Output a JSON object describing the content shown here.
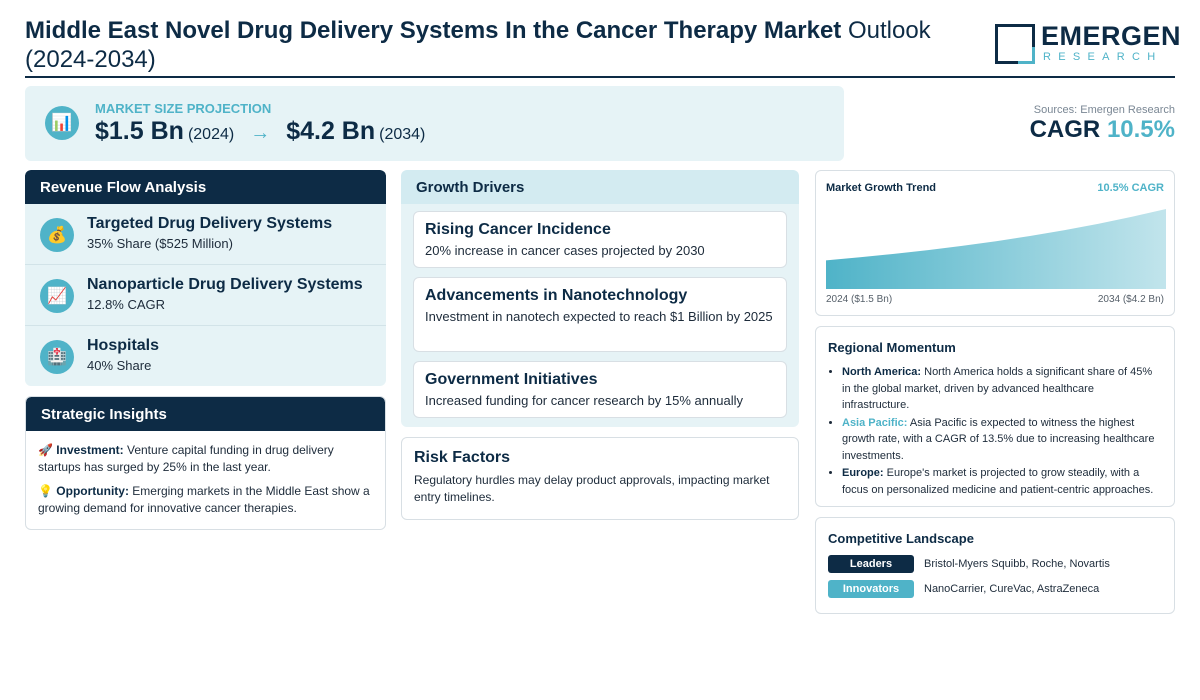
{
  "header": {
    "title_bold": "Middle East Novel Drug Delivery Systems In the Cancer Therapy Market",
    "title_rest": " Outlook (2024-2034)",
    "logo_word": "EMERGEN",
    "logo_sub": "RESEARCH"
  },
  "projection": {
    "label": "MARKET SIZE PROJECTION",
    "start_value": "$1.5 Bn",
    "start_year": "(2024)",
    "arrow": "→",
    "end_value": "$4.2 Bn",
    "end_year": "(2034)",
    "icon": "bar-chart-icon"
  },
  "summary": {
    "sources": "Sources: Emergen Research",
    "cagr_label": "CAGR",
    "cagr_value": "10.5%"
  },
  "revenue": {
    "title": "Revenue Flow Analysis",
    "items": [
      {
        "title": "Targeted Drug Delivery Systems",
        "sub": "35% Share ($525 Million)",
        "icon": "💰",
        "icon_name": "money-bag-icon"
      },
      {
        "title": "Nanoparticle Drug Delivery Systems",
        "sub": "12.8% CAGR",
        "icon": "📈",
        "icon_name": "trend-up-icon"
      },
      {
        "title": "Hospitals",
        "sub": "40% Share",
        "icon": "🏥",
        "icon_name": "hospital-icon"
      }
    ]
  },
  "strategic": {
    "title": "Strategic Insights",
    "investment_icon": "🚀",
    "investment_label": "Investment:",
    "investment_text": " Venture capital funding in drug delivery startups has surged by 25% in the last year.",
    "opportunity_icon": "💡",
    "opportunity_label": "Opportunity:",
    "opportunity_text": " Emerging markets in the Middle East show a growing demand for innovative cancer therapies."
  },
  "growth": {
    "title": "Growth Drivers",
    "items": [
      {
        "title": "Rising Cancer Incidence",
        "desc": "20% increase in cancer cases projected by 2030"
      },
      {
        "title": "Advancements in Nanotechnology",
        "desc": "Investment in nanotech expected to reach $1 Billion by 2025"
      },
      {
        "title": "Government Initiatives",
        "desc": "Increased funding for cancer research by 15% annually"
      }
    ]
  },
  "risk": {
    "title": "Risk Factors",
    "desc": "Regulatory hurdles may delay product approvals, impacting market entry timelines."
  },
  "trend": {
    "title": "Market Growth Trend",
    "cagr": "10.5% CAGR",
    "start_label": "2024 ($1.5 Bn)",
    "end_label": "2034 ($4.2 Bn)"
  },
  "chart_data": {
    "type": "area",
    "title": "Market Growth Trend",
    "x": [
      2024,
      2034
    ],
    "values": [
      1.5,
      4.2
    ],
    "unit": "$ Bn",
    "accent_color": "#4fb3c8"
  },
  "regional": {
    "title": "Regional Momentum",
    "items": [
      {
        "region": "North America:",
        "text": " North America holds a significant share of 45% in the global market, driven by advanced healthcare infrastructure."
      },
      {
        "region": "Asia Pacific:",
        "text": " Asia Pacific is expected to witness the highest growth rate, with a CAGR of 13.5% due to increasing healthcare investments."
      },
      {
        "region": "Europe:",
        "text": " Europe's market is projected to grow steadily, with a focus on personalized medicine and patient-centric approaches."
      }
    ]
  },
  "competitive": {
    "title": "Competitive Landscape",
    "leaders_label": "Leaders",
    "leaders": "Bristol-Myers Squibb, Roche, Novartis",
    "innovators_label": "Innovators",
    "innovators": "NanoCarrier, CureVac, AstraZeneca"
  },
  "colors": {
    "navy": "#0d2b45",
    "teal": "#4fb3c8",
    "light_bg": "#e6f3f6"
  }
}
